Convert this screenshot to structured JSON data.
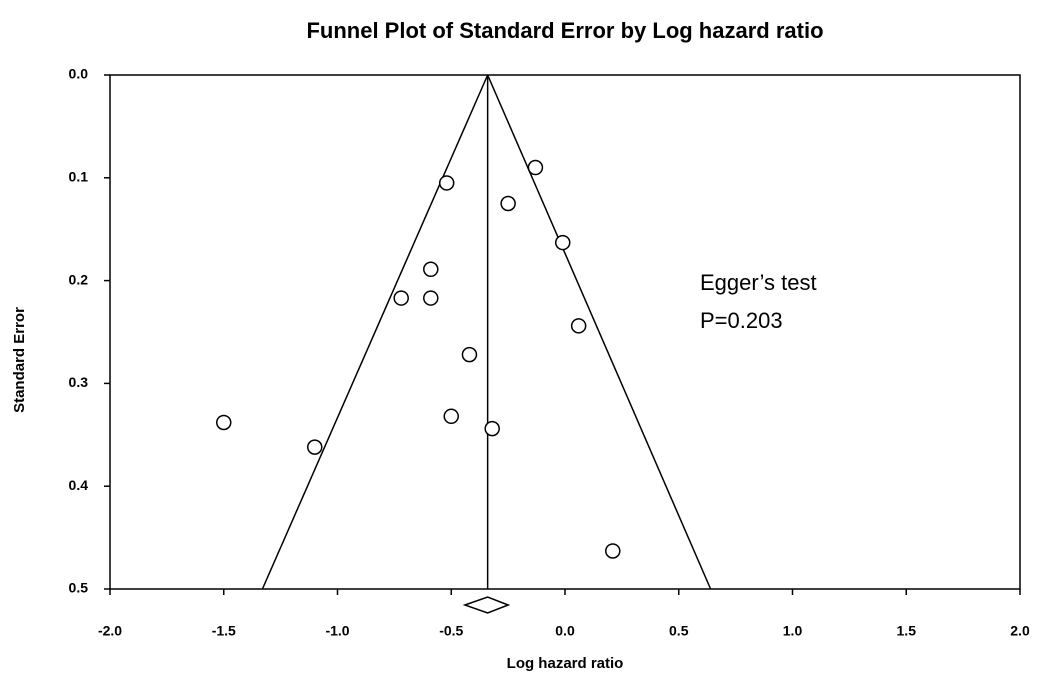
{
  "chart_data": {
    "type": "funnel",
    "title": "Funnel Plot of Standard Error by Log hazard ratio",
    "x_label": "Log hazard ratio",
    "y_label": "Standard Error",
    "x": [
      -0.13,
      -0.52,
      -0.25,
      -0.01,
      -0.59,
      -0.72,
      -0.59,
      0.06,
      -0.42,
      -0.5,
      -1.5,
      -0.32,
      -1.1,
      0.21
    ],
    "values": [
      0.09,
      0.105,
      0.125,
      0.163,
      0.189,
      0.217,
      0.217,
      0.244,
      0.272,
      0.332,
      0.338,
      0.344,
      0.362,
      0.463
    ],
    "summary": {
      "estimate": -0.34,
      "ci": [
        -0.44,
        -0.25
      ]
    },
    "funnel_bottom": [
      -1.33,
      0.64
    ],
    "xlim": [
      -2,
      2
    ],
    "ylim": [
      0,
      0.5
    ],
    "y_reversed": true,
    "xticks": [
      {
        "value": -2,
        "label": "-2.0"
      },
      -1.5,
      {
        "value": -1,
        "label": "-1.0"
      },
      -0.5,
      {
        "value": 0,
        "label": "0.0"
      },
      0.5,
      {
        "value": 1,
        "label": "1.0"
      },
      1.5,
      {
        "value": 2,
        "label": "2.0"
      }
    ],
    "yticks": [
      {
        "value": 0,
        "label": "0.0"
      },
      0.1,
      0.2,
      0.3,
      0.4,
      0.5
    ],
    "annotations": [
      "Egger’s test",
      "P=0.203"
    ]
  }
}
